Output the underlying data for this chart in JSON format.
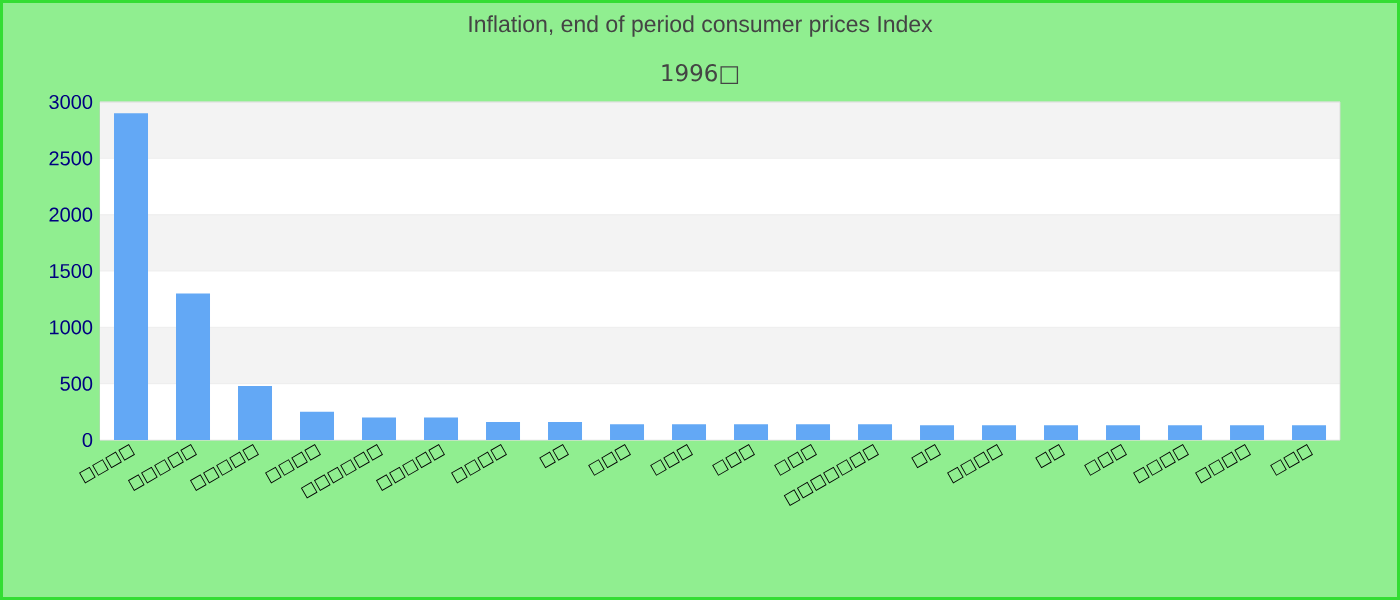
{
  "chart_data": {
    "type": "bar",
    "title": "Inflation, end of period consumer prices  Index",
    "subtitle": "1996□",
    "categories": [
      "□□□□",
      "□□□□□",
      "□□□□□",
      "□□□□",
      "□□□□□□",
      "□□□□□",
      "□□□□",
      "□□",
      "□□□",
      "□□□",
      "□□□",
      "□□□",
      "□□□□□□□",
      "□□",
      "□□□□",
      "□□",
      "□□□",
      "□□□□",
      "□□□□",
      "□□□"
    ],
    "values": [
      2900,
      1300,
      480,
      250,
      200,
      200,
      160,
      160,
      140,
      140,
      140,
      140,
      140,
      130,
      130,
      130,
      130,
      130,
      130,
      130
    ],
    "color": "#63a8f5",
    "ylim": [
      0,
      3000
    ],
    "yticks": [
      0,
      500,
      1000,
      1500,
      2000,
      2500,
      3000
    ],
    "grid": "y"
  }
}
